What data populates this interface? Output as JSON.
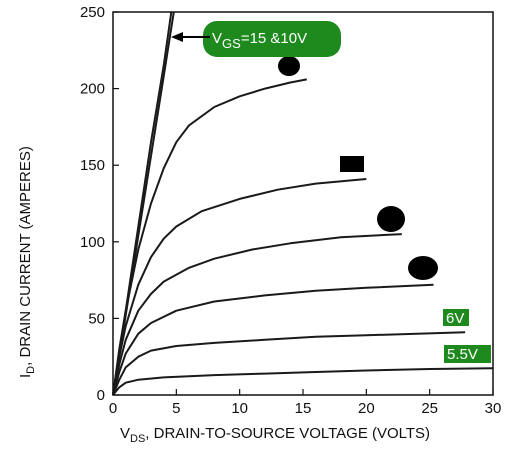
{
  "chart_data": {
    "type": "line",
    "xlabel": {
      "main": "V",
      "sub": "DS",
      "rest": ", DRAIN-TO-SOURCE VOLTAGE (VOLTS)"
    },
    "ylabel": {
      "main": "I",
      "sub": "D",
      "rest": ", DRAIN CURRENT (AMPERES)"
    },
    "xlim": [
      0,
      30
    ],
    "ylim": [
      0,
      250
    ],
    "x_ticks": [
      0,
      5,
      10,
      15,
      20,
      25,
      30
    ],
    "y_ticks": [
      0,
      50,
      100,
      150,
      200,
      250
    ],
    "grid": false,
    "line_color": "#1a1a1a",
    "label_color": "#1e8a1e",
    "series": [
      {
        "points": [
          [
            0,
            0
          ],
          [
            1,
            55
          ],
          [
            2,
            110
          ],
          [
            3,
            165
          ],
          [
            4,
            215
          ],
          [
            4.6,
            250
          ]
        ]
      },
      {
        "points": [
          [
            0,
            0
          ],
          [
            1,
            52
          ],
          [
            2,
            104
          ],
          [
            3,
            156
          ],
          [
            4,
            208
          ],
          [
            4.8,
            250
          ]
        ]
      },
      {
        "points": [
          [
            0,
            0
          ],
          [
            0.5,
            30
          ],
          [
            1,
            55
          ],
          [
            2,
            95
          ],
          [
            3,
            125
          ],
          [
            4,
            148
          ],
          [
            5,
            165
          ],
          [
            6,
            176
          ],
          [
            8,
            188
          ],
          [
            10,
            195
          ],
          [
            12,
            200
          ],
          [
            14,
            204
          ],
          [
            15.3,
            206
          ]
        ]
      },
      {
        "points": [
          [
            0,
            0
          ],
          [
            0.5,
            25
          ],
          [
            1,
            45
          ],
          [
            2,
            72
          ],
          [
            3,
            90
          ],
          [
            4,
            102
          ],
          [
            5,
            110
          ],
          [
            7,
            120
          ],
          [
            10,
            128
          ],
          [
            13,
            134
          ],
          [
            16,
            138
          ],
          [
            20,
            141
          ]
        ]
      },
      {
        "points": [
          [
            0,
            0
          ],
          [
            0.5,
            20
          ],
          [
            1,
            36
          ],
          [
            2,
            55
          ],
          [
            3,
            66
          ],
          [
            4,
            74
          ],
          [
            6,
            83
          ],
          [
            8,
            89
          ],
          [
            11,
            95
          ],
          [
            14,
            99
          ],
          [
            18,
            103
          ],
          [
            22.8,
            105
          ]
        ]
      },
      {
        "points": [
          [
            0,
            0
          ],
          [
            0.5,
            15
          ],
          [
            1,
            27
          ],
          [
            2,
            40
          ],
          [
            3,
            47
          ],
          [
            5,
            55
          ],
          [
            8,
            61
          ],
          [
            12,
            65
          ],
          [
            16,
            68
          ],
          [
            20,
            70
          ],
          [
            25.3,
            72
          ]
        ]
      },
      {
        "name": "6V",
        "points": [
          [
            0,
            0
          ],
          [
            0.5,
            10
          ],
          [
            1,
            18
          ],
          [
            2,
            25
          ],
          [
            3,
            29
          ],
          [
            5,
            32
          ],
          [
            8,
            34
          ],
          [
            12,
            36
          ],
          [
            16,
            38
          ],
          [
            20,
            39
          ],
          [
            24,
            40
          ],
          [
            27.8,
            41
          ]
        ]
      },
      {
        "name": "5.5V",
        "points": [
          [
            0,
            0
          ],
          [
            0.5,
            5
          ],
          [
            1,
            8
          ],
          [
            2,
            10
          ],
          [
            4,
            11.5
          ],
          [
            8,
            13
          ],
          [
            12,
            14
          ],
          [
            16,
            15
          ],
          [
            20,
            16
          ],
          [
            25,
            17
          ],
          [
            30,
            17.5
          ]
        ]
      }
    ],
    "annotations": {
      "vgs_label": {
        "main": "V",
        "sub": "GS",
        "rest": "=15 &10V"
      }
    }
  }
}
